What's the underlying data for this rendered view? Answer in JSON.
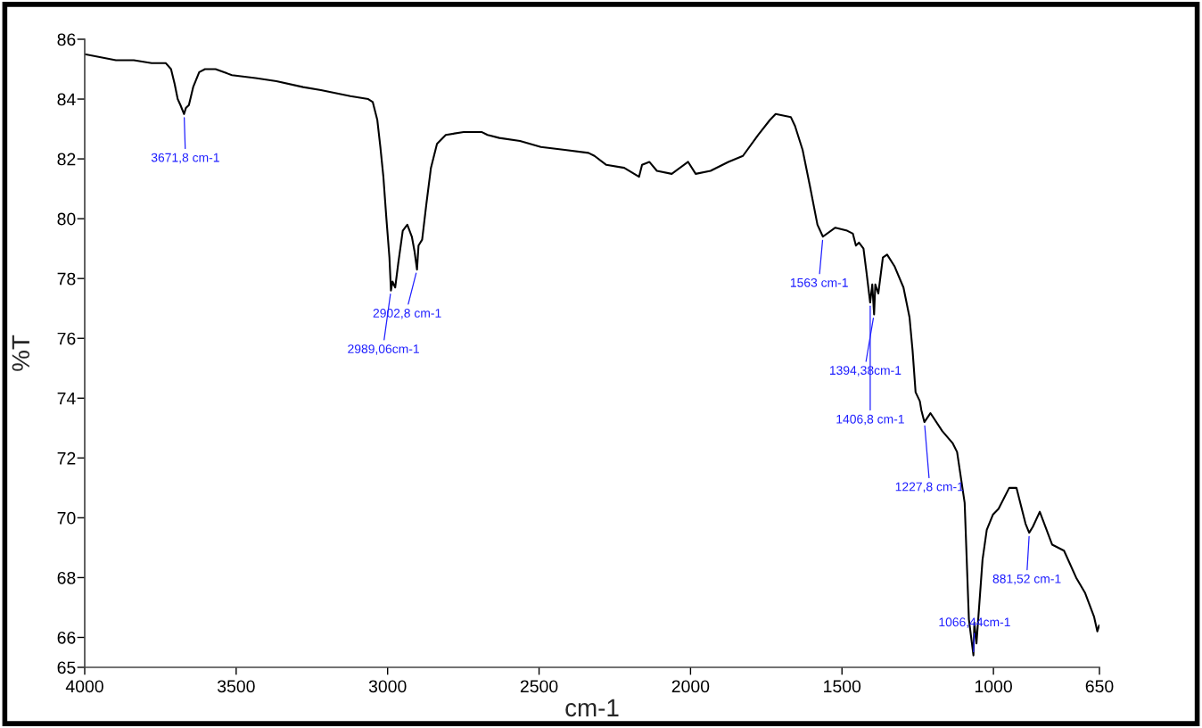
{
  "chart_data": {
    "type": "line",
    "xlabel": "cm-1",
    "ylabel": "%T",
    "xlim": [
      4000,
      650
    ],
    "xticks": [
      4000,
      3500,
      3000,
      2500,
      2000,
      1500,
      1000,
      650
    ],
    "ylim": [
      65,
      86
    ],
    "yticks": [
      65,
      66,
      68,
      70,
      72,
      74,
      76,
      78,
      80,
      82,
      84,
      86
    ],
    "grid": false,
    "series": [
      {
        "color": "#000000",
        "x": [
          4000,
          3897,
          3838,
          3779,
          3732,
          3715,
          3703,
          3693,
          3684,
          3672,
          3666,
          3656,
          3642,
          3622,
          3603,
          3568,
          3514,
          3436,
          3367,
          3279,
          3220,
          3123,
          3064,
          3049,
          3034,
          3024,
          3014,
          3004,
          2994,
          2989,
          2984,
          2975,
          2965,
          2950,
          2935,
          2920,
          2911,
          2903,
          2898,
          2886,
          2872,
          2857,
          2837,
          2808,
          2749,
          2710,
          2690,
          2670,
          2631,
          2563,
          2494,
          2415,
          2337,
          2317,
          2278,
          2219,
          2170,
          2160,
          2136,
          2111,
          2062,
          2008,
          1983,
          1934,
          1875,
          1827,
          1777,
          1738,
          1719,
          1669,
          1655,
          1630,
          1606,
          1581,
          1563,
          1522,
          1483,
          1464,
          1454,
          1444,
          1429,
          1419,
          1407,
          1400,
          1394,
          1390,
          1380,
          1365,
          1351,
          1326,
          1297,
          1277,
          1267,
          1257,
          1243,
          1238,
          1228,
          1208,
          1169,
          1135,
          1120,
          1095,
          1081,
          1066,
          1063,
          1056,
          1036,
          1022,
          1002,
          983,
          948,
          924,
          894,
          882,
          870,
          847,
          806,
          767,
          727,
          698,
          668,
          657,
          651
        ],
        "values": [
          85.5,
          85.3,
          85.3,
          85.2,
          85.2,
          85.0,
          84.5,
          84.0,
          83.8,
          83.5,
          83.7,
          83.8,
          84.4,
          84.9,
          85.0,
          85.0,
          84.8,
          84.7,
          84.6,
          84.4,
          84.3,
          84.1,
          84.0,
          83.9,
          83.3,
          82.4,
          81.4,
          80.0,
          78.7,
          77.6,
          77.9,
          77.7,
          78.5,
          79.6,
          79.8,
          79.4,
          78.9,
          78.3,
          79.1,
          79.3,
          80.5,
          81.7,
          82.5,
          82.8,
          82.9,
          82.9,
          82.9,
          82.8,
          82.7,
          82.6,
          82.4,
          82.3,
          82.2,
          82.1,
          81.8,
          81.7,
          81.4,
          81.8,
          81.9,
          81.6,
          81.5,
          81.9,
          81.5,
          81.6,
          81.9,
          82.1,
          82.8,
          83.3,
          83.5,
          83.4,
          83.1,
          82.3,
          81.1,
          79.8,
          79.4,
          79.7,
          79.6,
          79.5,
          79.1,
          79.2,
          79.0,
          78.2,
          77.2,
          77.8,
          76.8,
          77.8,
          77.5,
          78.7,
          78.8,
          78.4,
          77.7,
          76.7,
          75.6,
          74.2,
          73.9,
          73.6,
          73.2,
          73.5,
          72.9,
          72.5,
          72.2,
          70.5,
          66.6,
          65.4,
          66.5,
          65.8,
          68.6,
          69.6,
          70.1,
          70.3,
          71.0,
          71.0,
          69.8,
          69.5,
          69.7,
          70.2,
          69.1,
          68.9,
          68.0,
          67.5,
          66.7,
          66.2,
          66.4
        ]
      }
    ],
    "annotations": [
      {
        "text": "3671,8 cm-1",
        "x": 3671.8,
        "y": 83.5
      },
      {
        "text": "2989,06cm-1",
        "x": 2989.06,
        "y": 77.6
      },
      {
        "text": "2902,8 cm-1",
        "x": 2902.8,
        "y": 78.3
      },
      {
        "text": "1563 cm-1",
        "x": 1563,
        "y": 79.4
      },
      {
        "text": "1394,38cm-1",
        "x": 1394.38,
        "y": 76.8
      },
      {
        "text": "1406,8 cm-1",
        "x": 1406.8,
        "y": 77.2
      },
      {
        "text": "1227,8 cm-1",
        "x": 1227.8,
        "y": 73.2
      },
      {
        "text": "1066,44cm-1",
        "x": 1066.44,
        "y": 65.4
      },
      {
        "text": "881,52 cm-1",
        "x": 881.52,
        "y": 69.5
      }
    ]
  }
}
